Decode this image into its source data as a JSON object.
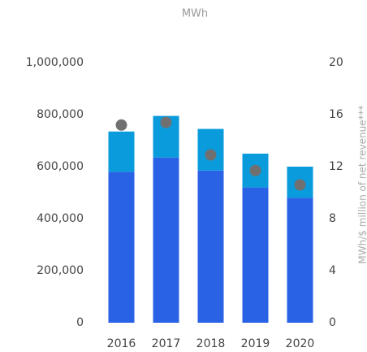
{
  "chart_data": {
    "type": "bar",
    "title": "MWh",
    "y2_label": "MWh/$ million of net revenue***",
    "categories": [
      "2016",
      "2017",
      "2018",
      "2019",
      "2020"
    ],
    "series": [
      {
        "color": "#2a62e6",
        "values": [
          580000,
          635000,
          585000,
          520000,
          480000
        ]
      },
      {
        "color": "#0a9bdc",
        "values": [
          155000,
          160000,
          160000,
          130000,
          120000
        ]
      },
      {
        "color": "#707070",
        "axis": "y2",
        "type": "scatter",
        "values": [
          15.2,
          15.4,
          12.9,
          11.7,
          10.6
        ]
      }
    ],
    "stacked": true,
    "ylim": [
      0,
      1000000
    ],
    "yticks": [
      0,
      {
        "value": 200000,
        "label": "200,000"
      },
      {
        "value": 400000,
        "label": "400,000"
      },
      {
        "value": 600000,
        "label": "600,000"
      },
      {
        "value": 800000,
        "label": "800,000"
      },
      {
        "value": 1000000,
        "label": "1,000,000"
      }
    ],
    "y2lim": [
      0,
      20
    ],
    "y2ticks": [
      0,
      4,
      8,
      12,
      16,
      20
    ]
  }
}
